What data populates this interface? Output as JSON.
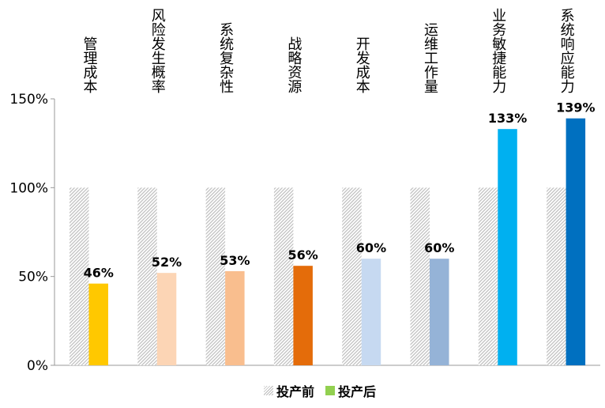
{
  "chart_data": {
    "type": "bar",
    "categories": [
      "管理成本",
      "风险发生概率",
      "系统复杂性",
      "战略资源",
      "开发成本",
      "运维工作量",
      "业务敏捷能力",
      "系统响应能力"
    ],
    "series": [
      {
        "name": "投产前",
        "values": [
          100,
          100,
          100,
          100,
          100,
          100,
          100,
          100
        ],
        "pattern": "hatched-gray"
      },
      {
        "name": "投产后",
        "values": [
          46,
          52,
          53,
          56,
          60,
          60,
          133,
          139
        ],
        "colors": [
          "#FFC800",
          "#FCD5B5",
          "#F9BE8E",
          "#E46C0A",
          "#C6D9F1",
          "#95B3D7",
          "#00B0F0",
          "#0070C0"
        ]
      }
    ],
    "data_labels": [
      "46%",
      "52%",
      "53%",
      "56%",
      "60%",
      "60%",
      "133%",
      "139%"
    ],
    "ylim": [
      0,
      150
    ],
    "yticks": [
      "0%",
      "50%",
      "100%",
      "150%"
    ],
    "grid": false,
    "legend": {
      "placement": "bottom",
      "items": [
        "投产前",
        "投产后"
      ],
      "colors": [
        "#BBBBBB",
        "#92D050"
      ]
    }
  }
}
